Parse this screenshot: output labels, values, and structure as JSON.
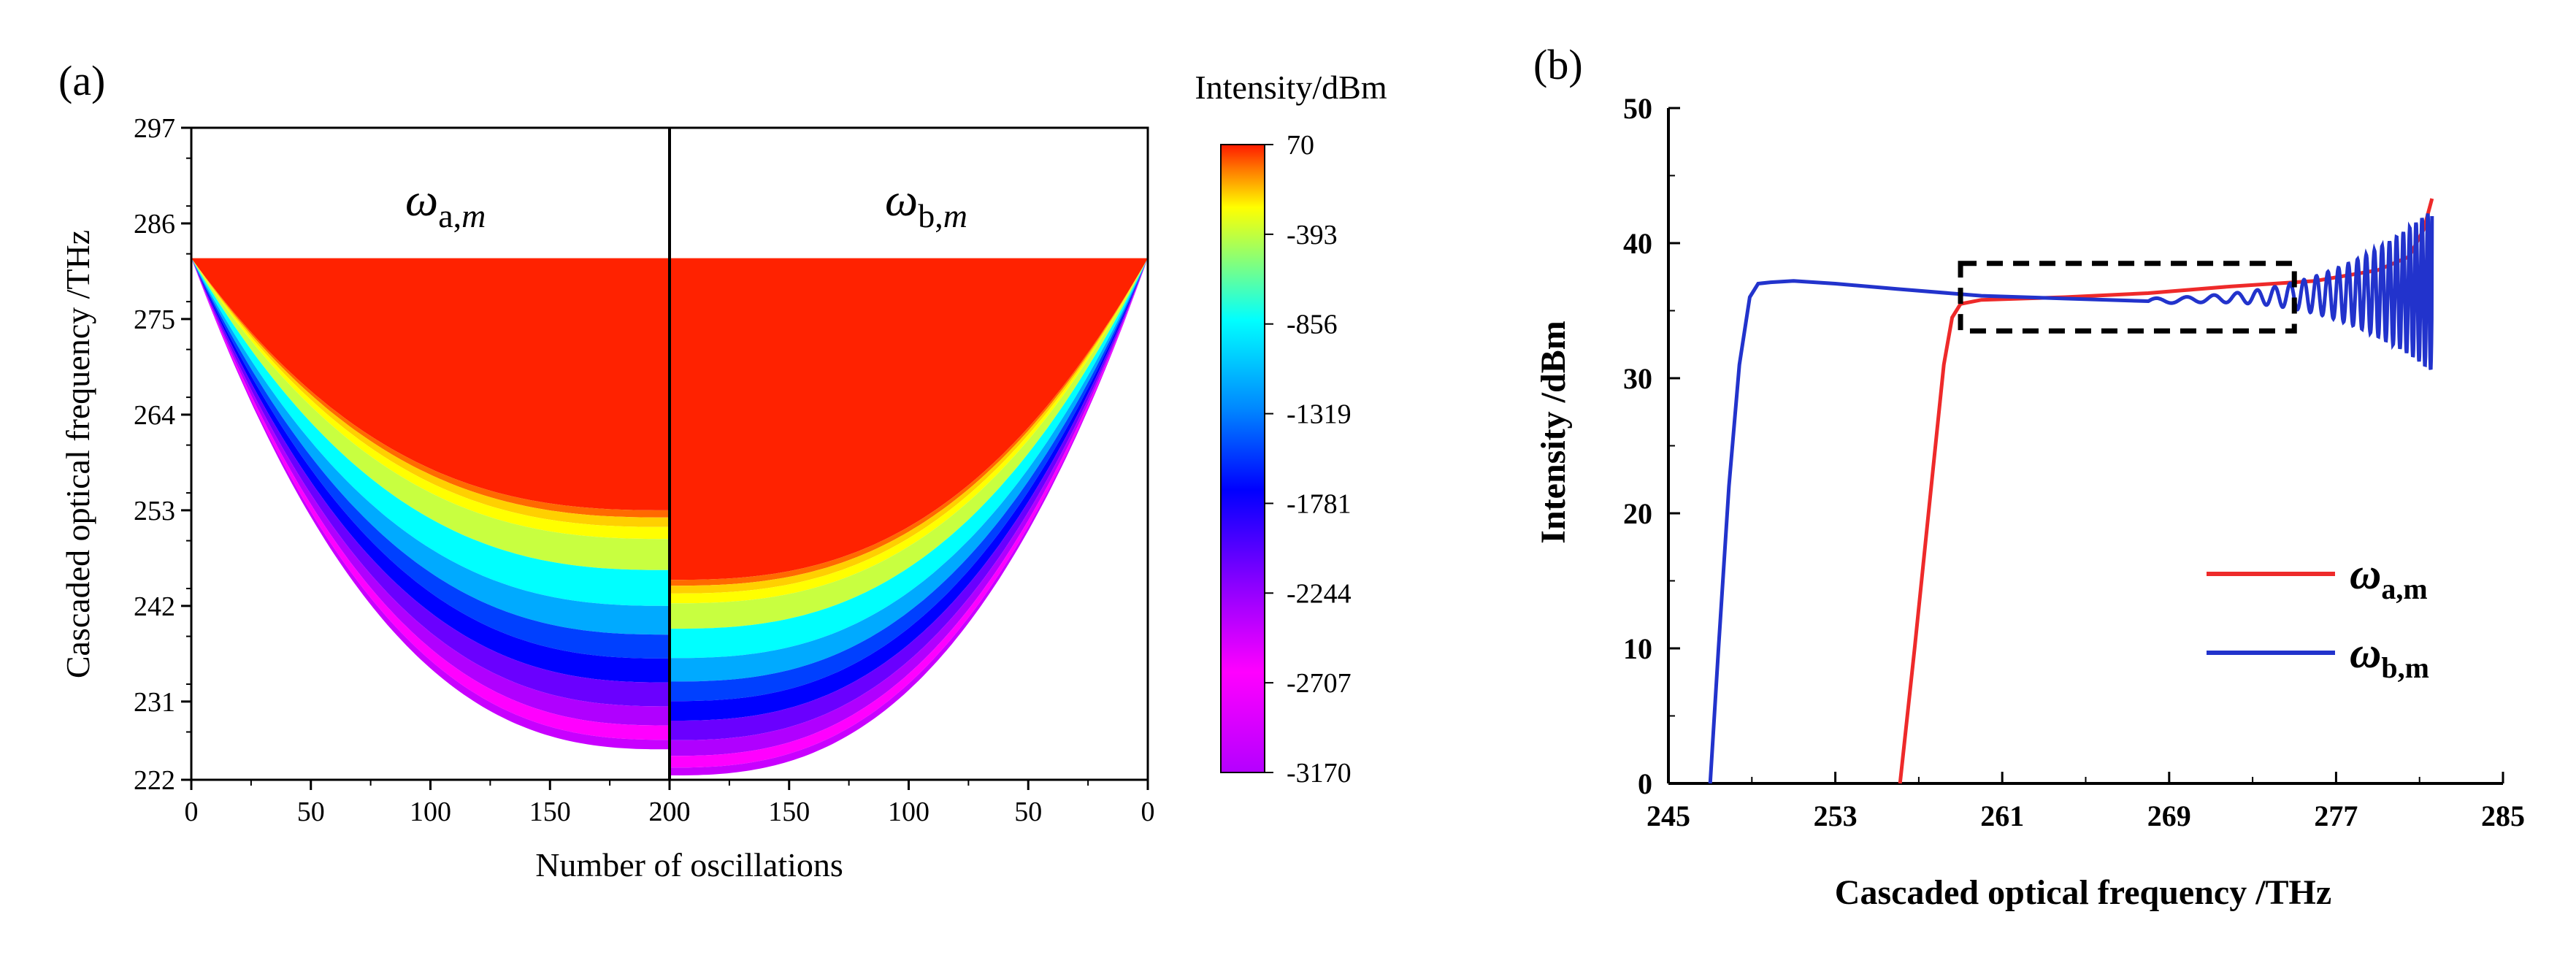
{
  "chart_data": [
    {
      "panel": "(a)",
      "type": "heatmap",
      "xlabel": "Number of oscillations",
      "ylabel": "Cascaded optical frequency /THz",
      "x_ticks": [
        "0",
        "50",
        "100",
        "150",
        "200",
        "200",
        "150",
        "100",
        "50",
        "0"
      ],
      "y_ticks": [
        "297",
        "286",
        "275",
        "264",
        "253",
        "242",
        "231",
        "222"
      ],
      "ylim": [
        222,
        297
      ],
      "regions": [
        {
          "label_main": "ω",
          "label_sub": "a,",
          "label_subit": "m",
          "x_range": [
            0,
            200
          ],
          "top_thz": 282,
          "red_boundary_min_thz": 253,
          "lower_edge_min_thz": 225.5
        },
        {
          "label_main": "ω",
          "label_sub": "b,",
          "label_subit": "m",
          "x_range": [
            200,
            0
          ],
          "top_thz": 282,
          "red_boundary_min_thz": 245,
          "lower_edge_min_thz": 222.5
        }
      ],
      "colorbar": {
        "title": "Intensity/dBm",
        "ticks": [
          "70",
          "-393",
          "-856",
          "-1319",
          "-1781",
          "-2244",
          "-2707",
          "-3170"
        ],
        "colors": [
          "#ff2200",
          "#ffff00",
          "#00ffff",
          "#0000ff",
          "#8800ff",
          "#ff00ff",
          "#bb00ff"
        ]
      }
    },
    {
      "panel": "(b)",
      "type": "line",
      "xlabel": "Cascaded optical frequency /THz",
      "ylabel": "Intensity /dBm",
      "xlim": [
        245,
        285
      ],
      "ylim": [
        0,
        50
      ],
      "x_ticks": [
        "245",
        "253",
        "261",
        "269",
        "277",
        "285"
      ],
      "y_ticks": [
        "0",
        "10",
        "20",
        "30",
        "40",
        "50"
      ],
      "series": [
        {
          "name": "ω",
          "name_sub": "a,m",
          "color": "#ee2a2a",
          "x": [
            256.1,
            256.8,
            257.6,
            258.2,
            258.6,
            259.0,
            260,
            264,
            268,
            272,
            276,
            279,
            280.5,
            281.2,
            281.6
          ],
          "y": [
            0,
            10,
            22,
            31,
            34.5,
            35.5,
            35.8,
            36.0,
            36.3,
            36.8,
            37.2,
            38,
            39,
            41,
            43.3
          ]
        },
        {
          "name": "ω",
          "name_sub": "b,m",
          "color": "#2233cc",
          "x": [
            247.0,
            247.4,
            247.9,
            248.4,
            248.9,
            249.3,
            249.9,
            251,
            253,
            256,
            260,
            264,
            268
          ],
          "y": [
            0,
            10,
            22,
            31,
            36,
            37,
            37.1,
            37.2,
            37.0,
            36.6,
            36.1,
            35.9,
            35.7
          ],
          "oscillation": {
            "x_start": 268,
            "x_end": 281.6,
            "mean_start": 35.7,
            "mean_end": 36.5,
            "amp_start": 0.2,
            "amp_end": 6.0,
            "end_y": 42
          }
        }
      ],
      "annotation": {
        "type": "dashed-box",
        "x_range": [
          259,
          275
        ],
        "y_range": [
          33.5,
          38.5
        ]
      },
      "legend_position": "right-middle"
    }
  ]
}
